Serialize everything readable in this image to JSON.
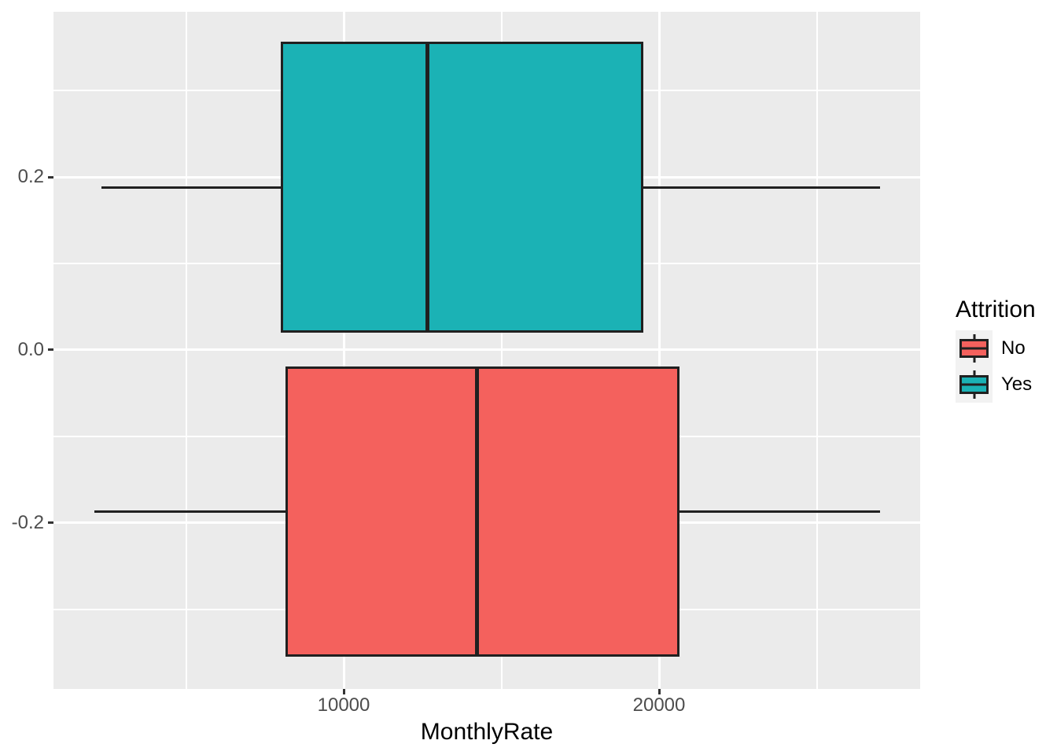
{
  "chart_data": {
    "type": "boxplot",
    "orientation": "horizontal",
    "title": "",
    "xlabel": "MonthlyRate",
    "ylabel": "",
    "x_axis": {
      "range": [
        798,
        28279
      ],
      "ticks": [
        {
          "value": 10000,
          "label": "10000"
        },
        {
          "value": 20000,
          "label": "20000"
        }
      ],
      "minor_ticks": [
        5000,
        15000,
        25000
      ]
    },
    "y_axis": {
      "range": [
        -0.392,
        0.391
      ],
      "ticks": [
        {
          "value": 0.2,
          "label": "0.2"
        },
        {
          "value": 0.0,
          "label": "0.0"
        },
        {
          "value": -0.2,
          "label": "-0.2"
        }
      ],
      "minor_ticks": [
        0.3,
        0.1,
        -0.1,
        -0.3
      ]
    },
    "series": [
      {
        "name": "Yes",
        "color": "#1BB2B5",
        "y_center": 0.188,
        "box_half_height": 0.168,
        "stats": {
          "min": 2326,
          "q1": 8010,
          "median": 12650,
          "q3": 19500,
          "max": 26997
        }
      },
      {
        "name": "No",
        "color": "#F4615D",
        "y_center": -0.187,
        "box_half_height": 0.168,
        "stats": {
          "min": 2094,
          "q1": 8150,
          "median": 14235,
          "q3": 20650,
          "max": 26999
        }
      }
    ],
    "legend": {
      "title": "Attrition",
      "position": "right",
      "items": [
        {
          "label": "No",
          "color": "#F4615D"
        },
        {
          "label": "Yes",
          "color": "#1BB2B5"
        }
      ]
    },
    "style": {
      "panel_bg": "#EBEBEB",
      "grid_color": "#FFFFFF",
      "box_border": "#202020",
      "tick_color": "#333333",
      "tick_label_color": "#4D4D4D",
      "axis_title_color": "#000000",
      "legend_key_bg": "#F2F2F2"
    }
  }
}
